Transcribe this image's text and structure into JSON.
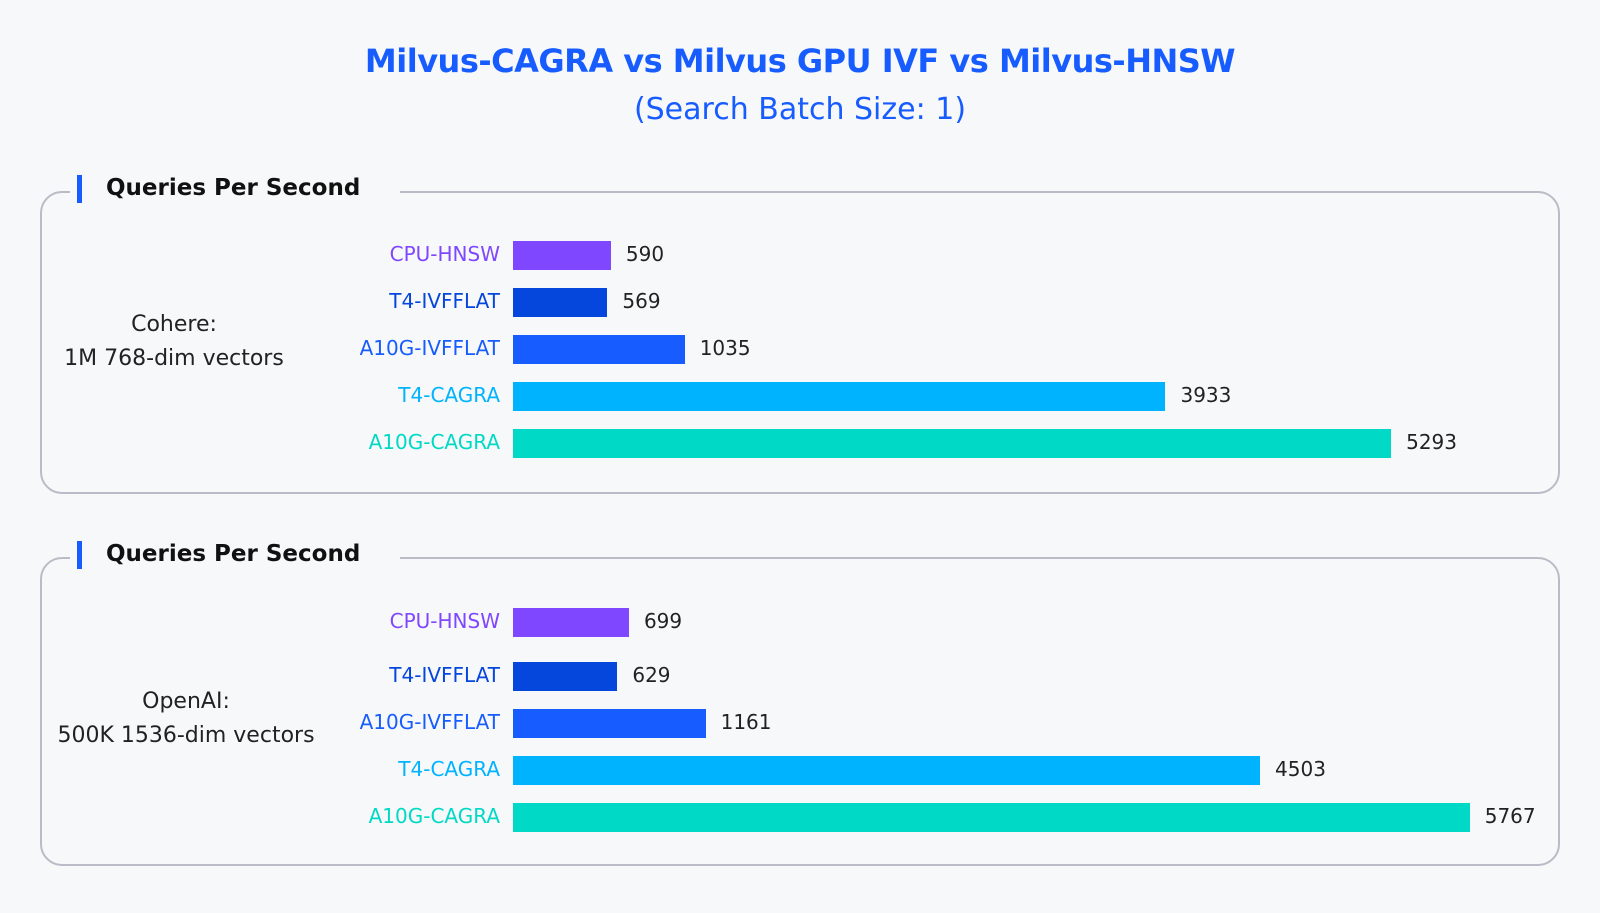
{
  "title": "Milvus-CAGRA vs Milvus GPU IVF vs Milvus-HNSW",
  "subtitle": "(Search Batch Size: 1)",
  "colors": {
    "CPU-HNSW": "#7f47ff",
    "T4-IVFFLAT": "#0546dc",
    "A10G-IVFFLAT": "#175cff",
    "T4-CAGRA": "#00b3ff",
    "A10G-CAGRA": "#00d9c5"
  },
  "chart_data": [
    {
      "type": "bar",
      "orientation": "horizontal",
      "title": "Queries Per Second",
      "dataset_label": [
        "Cohere:",
        "1M 768-dim vectors"
      ],
      "categories": [
        "CPU-HNSW",
        "T4-IVFFLAT",
        "A10G-IVFFLAT",
        "T4-CAGRA",
        "A10G-CAGRA"
      ],
      "values": [
        590,
        569,
        1035,
        3933,
        5293
      ],
      "grid": false
    },
    {
      "type": "bar",
      "orientation": "horizontal",
      "title": "Queries Per Second",
      "dataset_label": [
        "OpenAI:",
        "500K 1536-dim vectors"
      ],
      "categories": [
        "CPU-HNSW",
        "T4-IVFFLAT",
        "A10G-IVFFLAT",
        "T4-CAGRA",
        "A10G-CAGRA"
      ],
      "values": [
        699,
        629,
        1161,
        4503,
        5767
      ],
      "grid": false
    }
  ]
}
